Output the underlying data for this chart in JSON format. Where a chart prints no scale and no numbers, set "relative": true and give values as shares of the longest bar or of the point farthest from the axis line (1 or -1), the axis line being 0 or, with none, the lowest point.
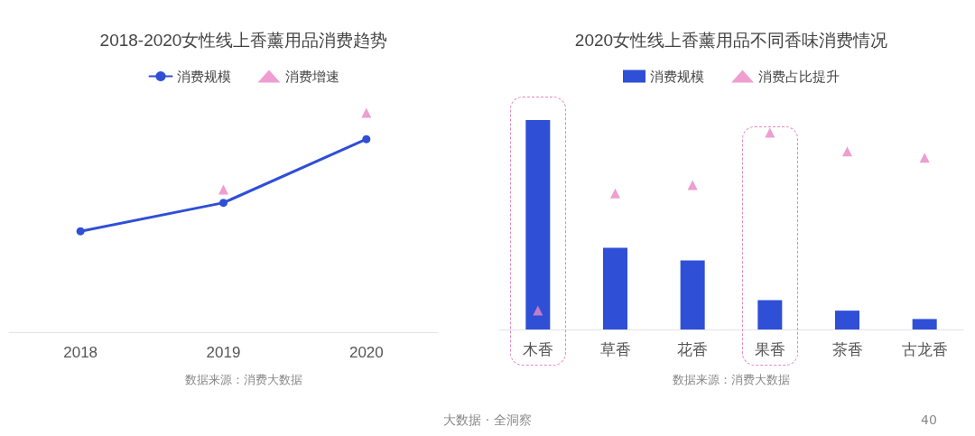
{
  "chart_data": [
    {
      "type": "line",
      "title": "2018-2020女性线上香薰用品消费趋势",
      "categories": [
        "2018",
        "2019",
        "2020"
      ],
      "relative": true,
      "legend": "top",
      "grid": false,
      "series": [
        {
          "name": "消费规模",
          "color": "#2f4fd6",
          "marker": "circle",
          "values": [
            0.46,
            0.59,
            0.88
          ]
        },
        {
          "name": "消费增速",
          "type": "scatter",
          "color": "#ea86c4",
          "marker": "triangle",
          "values": [
            null,
            0.65,
            1
          ]
        }
      ],
      "annotations": [
        "数据来源：消费大数据"
      ]
    },
    {
      "type": "bar",
      "title": "2020女性线上香薰用品不同香味消费情况",
      "categories": [
        "木香",
        "草香",
        "花香",
        "果香",
        "茶香",
        "古龙香"
      ],
      "relative": true,
      "legend": "top",
      "grid": false,
      "series": [
        {
          "name": "消费规模",
          "color": "#2f4fd6",
          "marker": "square",
          "values": [
            1,
            0.39,
            0.33,
            0.14,
            0.09,
            0.05
          ]
        },
        {
          "name": "消费占比提升",
          "type": "scatter",
          "color": "#ea86c4",
          "marker": "triangle",
          "values": [
            0.09,
            0.65,
            0.69,
            0.94,
            0.85,
            0.82
          ]
        }
      ],
      "annotations": [
        "数据来源：消费大数据",
        "大数据 · 全洞察",
        "40"
      ]
    }
  ]
}
